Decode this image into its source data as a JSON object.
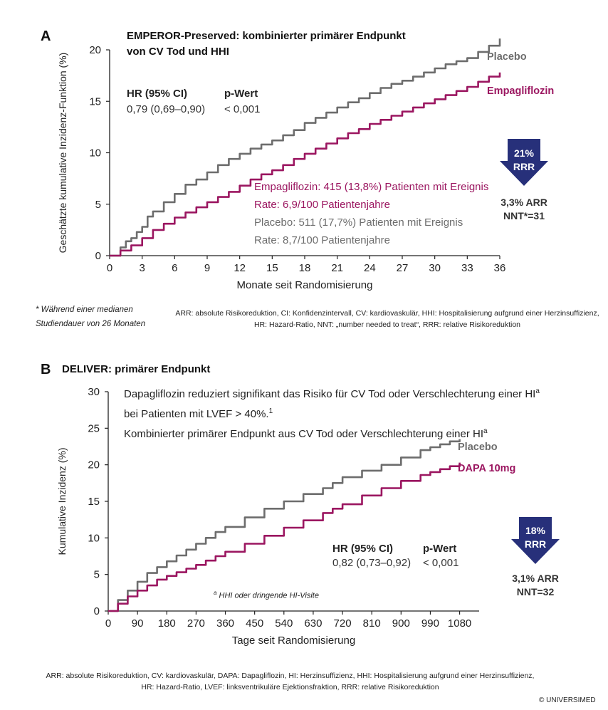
{
  "panel_a": {
    "letter": "A",
    "title_line1": "EMPEROR-Preserved: kombinierter primärer Endpunkt",
    "title_line2": "von CV Tod und HHI",
    "hr_header": "HR (95% CI)",
    "hr_value": "0,79 (0,69–0,90)",
    "p_header": "p-Wert",
    "p_value": "< 0,001",
    "label_placebo": "Placebo",
    "label_drug": "Empagliflozin",
    "drug_events": "Empagliflozin: 415 (13,8%) Patienten mit Ereignis",
    "drug_rate": "Rate: 6,9/100 Patientenjahre",
    "placebo_events": "Placebo: 511 (17,7%) Patienten mit Ereignis",
    "placebo_rate": "Rate: 8,7/100 Patientenjahre",
    "arrow_line1": "21%",
    "arrow_line2": "RRR",
    "arr": "3,3% ARR",
    "nnt": "NNT*=31",
    "footnote_line1": "* Während einer medianen",
    "footnote_line2": "Studiendauer von 26 Monaten",
    "abbr_line1": "ARR: absolute Risikoreduktion, CI: Konfidenzintervall, CV: kardiovaskulär, HHI: Hospitalisierung aufgrund einer Herzinsuffizienz,",
    "abbr_line2": "HR: Hazard-Ratio, NNT: „number needed to treat“, RRR: relative Risikoreduktion"
  },
  "panel_b": {
    "letter": "B",
    "title": "DELIVER: primärer Endpunkt",
    "desc_line1": "Dapagliflozin reduziert signifikant das Risiko für CV Tod oder Verschlechterung einer HI",
    "desc_line2": "bei Patienten mit LVEF > 40%.",
    "desc_line3": "Kombinierter primärer Endpunkt aus CV Tod oder Verschlechterung einer HI",
    "sup_a": "a",
    "sup_1": "1",
    "hr_header": "HR (95% CI)",
    "hr_value": "0,82 (0,73–0,92)",
    "p_header": "p-Wert",
    "p_value": "< 0,001",
    "label_placebo": "Placebo",
    "label_drug": "DAPA 10mg",
    "footnote_sup": "a",
    "footnote": "HHI oder dringende HI-Visite",
    "arrow_line1": "18%",
    "arrow_line2": "RRR",
    "arr": "3,1% ARR",
    "nnt": "NNT=32",
    "abbr_line1": "ARR: absolute Risikoreduktion, CV: kardiovaskulär, DAPA: Dapagliflozin, HI: Herzinsuffizienz, HHI: Hospitalisierung aufgrund einer Herzinsuffizienz,",
    "abbr_line2": "HR: Hazard-Ratio, LVEF: linksventrikuläre Ejektionsfraktion, RRR: relative Risikoreduktion"
  },
  "copyright": "© UNIVERSIMED",
  "colors": {
    "placebo": "#6d6d6d",
    "drug": "#9b1660",
    "arrow": "#27307a",
    "axis": "#222222"
  },
  "chart_data": [
    {
      "type": "line",
      "xlabel": "Monate seit Randomisierung",
      "ylabel": "Geschätzte kumulative Inzidenz-Funktion (%)",
      "xlim": [
        0,
        36
      ],
      "ylim": [
        0,
        20
      ],
      "xticks": [
        0,
        3,
        6,
        9,
        12,
        15,
        18,
        21,
        24,
        27,
        30,
        33,
        36
      ],
      "yticks": [
        0,
        5,
        10,
        15,
        20
      ],
      "series": [
        {
          "name": "Placebo",
          "color": "#6d6d6d",
          "x": [
            0,
            1,
            1.5,
            2,
            2.5,
            3,
            3.5,
            4,
            5,
            6,
            7,
            8,
            9,
            10,
            11,
            12,
            13,
            14,
            15,
            16,
            17,
            18,
            19,
            20,
            21,
            22,
            23,
            24,
            25,
            26,
            27,
            28,
            29,
            30,
            31,
            32,
            33,
            34,
            35,
            36
          ],
          "y": [
            0,
            0.8,
            1.4,
            1.7,
            2.3,
            2.8,
            3.8,
            4.3,
            5.2,
            6.0,
            6.9,
            7.4,
            8.1,
            8.8,
            9.4,
            9.9,
            10.4,
            10.8,
            11.2,
            11.7,
            12.2,
            12.9,
            13.4,
            13.9,
            14.4,
            14.9,
            15.3,
            15.8,
            16.3,
            16.7,
            17.0,
            17.4,
            17.8,
            18.2,
            18.6,
            18.9,
            19.2,
            19.8,
            20.4,
            21.1
          ]
        },
        {
          "name": "Empagliflozin",
          "color": "#9b1660",
          "x": [
            0,
            1,
            2,
            3,
            4,
            5,
            6,
            7,
            8,
            9,
            10,
            11,
            12,
            13,
            14,
            15,
            16,
            17,
            18,
            19,
            20,
            21,
            22,
            23,
            24,
            25,
            26,
            27,
            28,
            29,
            30,
            31,
            32,
            33,
            34,
            35,
            36
          ],
          "y": [
            0,
            0.5,
            1.0,
            1.7,
            2.5,
            3.1,
            3.7,
            4.2,
            4.7,
            5.2,
            5.7,
            6.2,
            6.8,
            7.4,
            7.9,
            8.3,
            8.8,
            9.4,
            9.9,
            10.4,
            10.9,
            11.4,
            11.9,
            12.3,
            12.8,
            13.2,
            13.6,
            14.0,
            14.4,
            14.8,
            15.2,
            15.6,
            16.0,
            16.4,
            16.9,
            17.4,
            17.8
          ]
        }
      ]
    },
    {
      "type": "line",
      "xlabel": "Tage seit Randomisierung",
      "ylabel": "Kumulative Inzidenz (%)",
      "xlim": [
        0,
        1140
      ],
      "ylim": [
        0,
        30
      ],
      "xticks": [
        0,
        90,
        180,
        270,
        360,
        450,
        540,
        630,
        720,
        810,
        900,
        990,
        1080
      ],
      "yticks": [
        0,
        5,
        10,
        15,
        20,
        25,
        30
      ],
      "series": [
        {
          "name": "Placebo",
          "color": "#6d6d6d",
          "x": [
            0,
            30,
            60,
            90,
            120,
            150,
            180,
            210,
            240,
            270,
            300,
            330,
            360,
            420,
            480,
            540,
            600,
            660,
            690,
            720,
            780,
            840,
            900,
            960,
            990,
            1020,
            1050,
            1080
          ],
          "y": [
            0,
            1.5,
            2.8,
            4.0,
            5.2,
            6.0,
            6.8,
            7.6,
            8.4,
            9.2,
            10.0,
            10.8,
            11.5,
            12.8,
            14.0,
            15.0,
            16.0,
            16.8,
            17.5,
            18.3,
            19.2,
            20.0,
            21.0,
            22.0,
            22.4,
            22.8,
            23.2,
            23.5
          ]
        },
        {
          "name": "DAPA 10mg",
          "color": "#9b1660",
          "x": [
            0,
            30,
            60,
            90,
            120,
            150,
            180,
            210,
            240,
            270,
            300,
            330,
            360,
            420,
            480,
            540,
            600,
            660,
            690,
            720,
            780,
            840,
            900,
            960,
            990,
            1020,
            1050,
            1080
          ],
          "y": [
            0,
            1.0,
            2.0,
            2.8,
            3.5,
            4.3,
            4.8,
            5.3,
            5.8,
            6.3,
            6.9,
            7.5,
            8.1,
            9.2,
            10.3,
            11.4,
            12.4,
            13.4,
            14.0,
            14.6,
            15.8,
            16.8,
            17.8,
            18.6,
            19.0,
            19.4,
            19.8,
            20.3
          ]
        }
      ]
    }
  ]
}
